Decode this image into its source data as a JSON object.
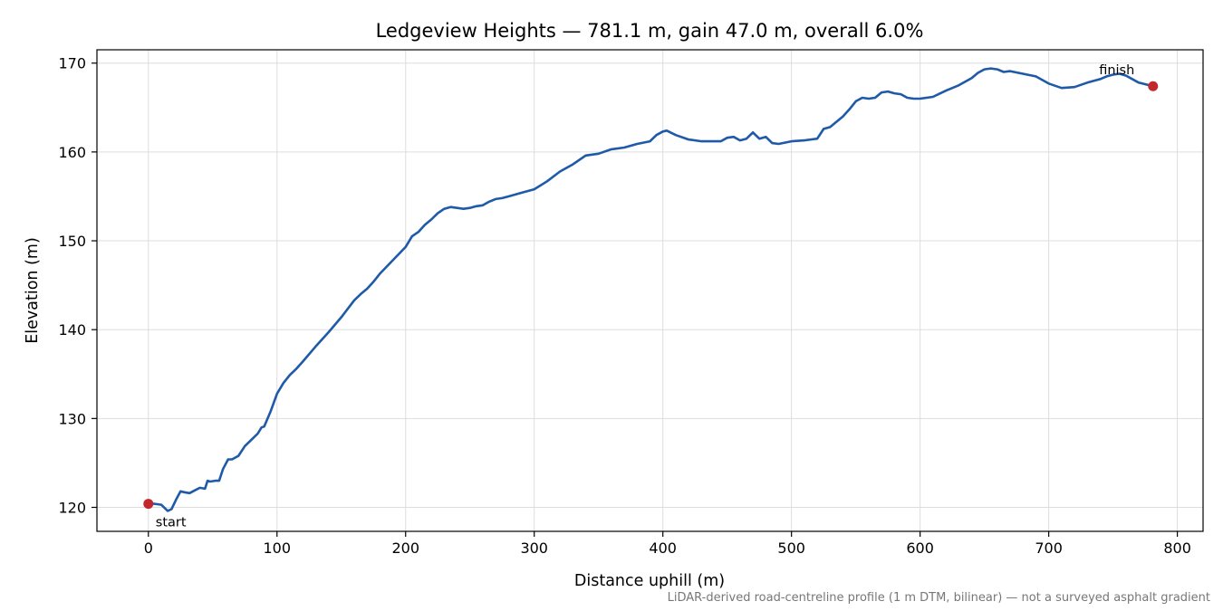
{
  "chart_data": {
    "type": "line",
    "title": "Ledgeview Heights — 781.1 m, gain 47.0 m, overall 6.0%",
    "xlabel": "Distance uphill (m)",
    "ylabel": "Elevation (m)",
    "xlim": [
      -40,
      820
    ],
    "ylim": [
      117.3,
      171.5
    ],
    "x_ticks": [
      0,
      100,
      200,
      300,
      400,
      500,
      600,
      700,
      800
    ],
    "y_ticks": [
      120,
      130,
      140,
      150,
      160,
      170
    ],
    "grid": true,
    "caption": "LiDAR-derived road-centreline profile (1 m DTM, bilinear) — not a surveyed asphalt gradient",
    "colors": {
      "line": "#1f5aa8",
      "marker": "#c1272d"
    },
    "series": [
      {
        "x": [
          0,
          5,
          10,
          15,
          18,
          22,
          25,
          28,
          32,
          36,
          40,
          44,
          46,
          48,
          52,
          55,
          58,
          62,
          65,
          70,
          75,
          80,
          85,
          88,
          90,
          95,
          100,
          105,
          110,
          115,
          120,
          130,
          140,
          150,
          160,
          165,
          170,
          175,
          180,
          190,
          200,
          205,
          210,
          215,
          220,
          225,
          230,
          235,
          240,
          245,
          250,
          255,
          260,
          265,
          270,
          275,
          280,
          290,
          300,
          310,
          320,
          330,
          340,
          350,
          360,
          370,
          380,
          390,
          395,
          400,
          403,
          410,
          420,
          430,
          440,
          445,
          450,
          455,
          460,
          465,
          470,
          475,
          480,
          485,
          490,
          500,
          510,
          515,
          520,
          525,
          530,
          540,
          545,
          550,
          555,
          560,
          565,
          570,
          575,
          580,
          585,
          590,
          595,
          600,
          610,
          620,
          630,
          640,
          645,
          650,
          655,
          660,
          665,
          670,
          680,
          690,
          700,
          710,
          720,
          730,
          740,
          745,
          750,
          755,
          760,
          770,
          781.1
        ],
        "y": [
          120.4,
          120.4,
          120.3,
          119.6,
          119.8,
          121.0,
          121.8,
          121.7,
          121.6,
          121.9,
          122.2,
          122.1,
          123.0,
          122.9,
          123.0,
          123.0,
          124.3,
          125.4,
          125.4,
          125.8,
          126.9,
          127.6,
          128.3,
          129.0,
          129.1,
          130.8,
          132.8,
          134.0,
          134.9,
          135.6,
          136.4,
          138.1,
          139.7,
          141.4,
          143.3,
          144.0,
          144.6,
          145.4,
          146.3,
          147.8,
          149.3,
          150.5,
          151.0,
          151.8,
          152.4,
          153.1,
          153.6,
          153.8,
          153.7,
          153.6,
          153.7,
          153.9,
          154.0,
          154.4,
          154.7,
          154.8,
          155.0,
          155.4,
          155.8,
          156.7,
          157.8,
          158.6,
          159.6,
          159.8,
          160.3,
          160.5,
          160.9,
          161.2,
          161.9,
          162.3,
          162.4,
          161.9,
          161.4,
          161.2,
          161.2,
          161.2,
          161.6,
          161.7,
          161.3,
          161.5,
          162.2,
          161.5,
          161.7,
          161.0,
          160.9,
          161.2,
          161.3,
          161.4,
          161.5,
          162.6,
          162.8,
          164.0,
          164.8,
          165.7,
          166.1,
          166.0,
          166.1,
          166.7,
          166.8,
          166.6,
          166.5,
          166.1,
          166.0,
          166.0,
          166.2,
          166.9,
          167.5,
          168.3,
          168.9,
          169.3,
          169.4,
          169.3,
          169.0,
          169.1,
          168.8,
          168.5,
          167.7,
          167.2,
          167.3,
          167.8,
          168.2,
          168.5,
          168.7,
          168.8,
          168.6,
          167.8,
          167.4
        ]
      }
    ],
    "annotations": [
      {
        "label": "start",
        "x": 0,
        "y": 120.4
      },
      {
        "label": "finish",
        "x": 781.1,
        "y": 167.4
      }
    ]
  }
}
